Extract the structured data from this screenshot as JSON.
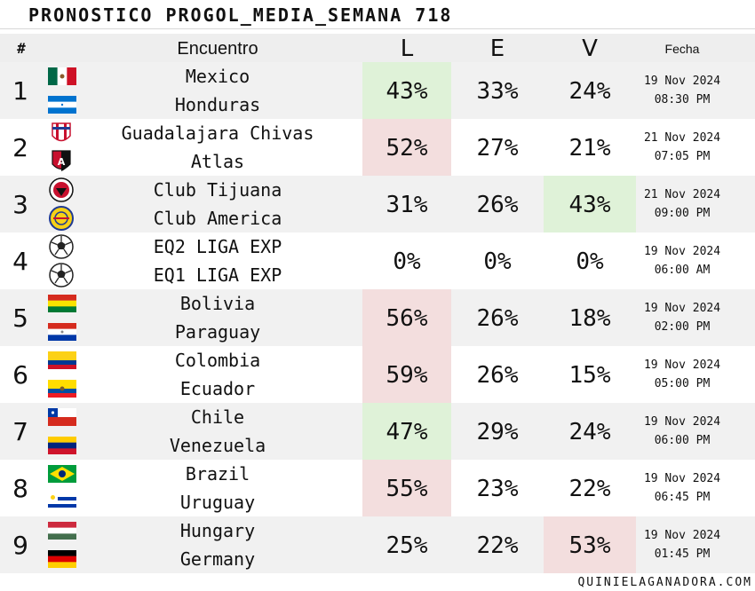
{
  "title": "PRONOSTICO PROGOL_MEDIA_SEMANA 718",
  "header": {
    "num": "#",
    "match": "Encuentro",
    "l": "L",
    "e": "E",
    "v": "V",
    "date": "Fecha"
  },
  "colors": {
    "win_highlight": "#dff2d8",
    "lose_highlight": "#f3dede",
    "row_alt": "#f1f1f1"
  },
  "rows": [
    {
      "num": "1",
      "home": "Mexico",
      "away": "Honduras",
      "home_icon": "mexico-flag-icon",
      "away_icon": "honduras-flag-icon",
      "l": "43%",
      "e": "33%",
      "v": "24%",
      "highlight": "l-green",
      "date": "19 Nov 2024",
      "time": "08:30 PM"
    },
    {
      "num": "2",
      "home": "Guadalajara Chivas",
      "away": "Atlas",
      "home_icon": "chivas-crest-icon",
      "away_icon": "atlas-crest-icon",
      "l": "52%",
      "e": "27%",
      "v": "21%",
      "highlight": "l-red",
      "date": "21 Nov 2024",
      "time": "07:05 PM"
    },
    {
      "num": "3",
      "home": "Club Tijuana",
      "away": "Club America",
      "home_icon": "tijuana-crest-icon",
      "away_icon": "america-crest-icon",
      "l": "31%",
      "e": "26%",
      "v": "43%",
      "highlight": "v-green",
      "date": "21 Nov 2024",
      "time": "09:00 PM"
    },
    {
      "num": "4",
      "home": "EQ2 LIGA EXP",
      "away": "EQ1 LIGA EXP",
      "home_icon": "soccer-ball-icon",
      "away_icon": "soccer-ball-icon",
      "l": "0%",
      "e": "0%",
      "v": "0%",
      "highlight": "",
      "date": "19 Nov 2024",
      "time": "06:00 AM"
    },
    {
      "num": "5",
      "home": "Bolivia",
      "away": "Paraguay",
      "home_icon": "bolivia-flag-icon",
      "away_icon": "paraguay-flag-icon",
      "l": "56%",
      "e": "26%",
      "v": "18%",
      "highlight": "l-red",
      "date": "19 Nov 2024",
      "time": "02:00 PM"
    },
    {
      "num": "6",
      "home": "Colombia",
      "away": "Ecuador",
      "home_icon": "colombia-flag-icon",
      "away_icon": "ecuador-flag-icon",
      "l": "59%",
      "e": "26%",
      "v": "15%",
      "highlight": "l-red",
      "date": "19 Nov 2024",
      "time": "05:00 PM"
    },
    {
      "num": "7",
      "home": "Chile",
      "away": "Venezuela",
      "home_icon": "chile-flag-icon",
      "away_icon": "venezuela-flag-icon",
      "l": "47%",
      "e": "29%",
      "v": "24%",
      "highlight": "l-green",
      "date": "19 Nov 2024",
      "time": "06:00 PM"
    },
    {
      "num": "8",
      "home": "Brazil",
      "away": "Uruguay",
      "home_icon": "brazil-flag-icon",
      "away_icon": "uruguay-flag-icon",
      "l": "55%",
      "e": "23%",
      "v": "22%",
      "highlight": "l-red",
      "date": "19 Nov 2024",
      "time": "06:45 PM"
    },
    {
      "num": "9",
      "home": "Hungary",
      "away": "Germany",
      "home_icon": "hungary-flag-icon",
      "away_icon": "germany-flag-icon",
      "l": "25%",
      "e": "22%",
      "v": "53%",
      "highlight": "v-red",
      "date": "19 Nov 2024",
      "time": "01:45 PM"
    }
  ],
  "footer": "QUINIELAGANADORA.COM"
}
